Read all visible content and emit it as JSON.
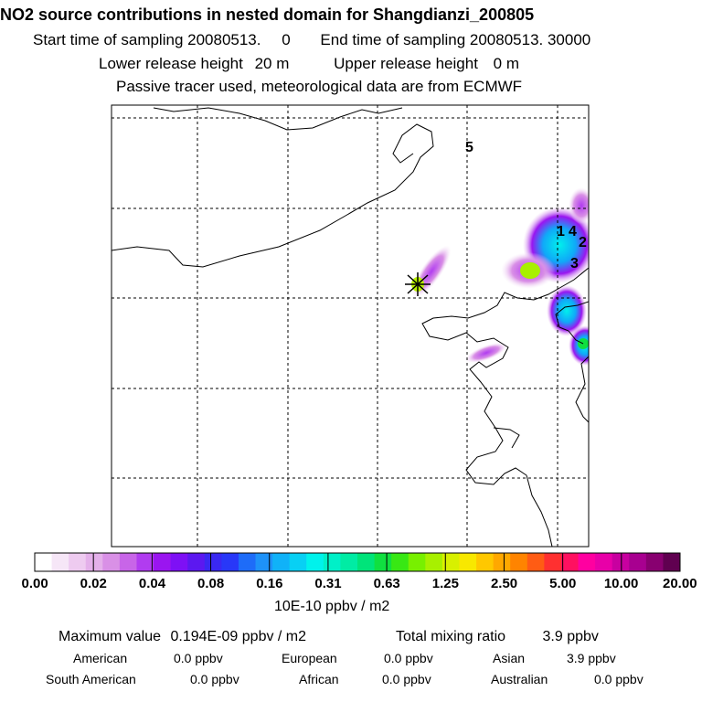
{
  "header": {
    "title": "NO2 source contributions in nested domain for Shangdianzi_200805",
    "start_label": "Start time of sampling 20080513.",
    "start_value": "0",
    "end_label": "End time of sampling 20080513. 30000",
    "lower_label": "Lower release height",
    "lower_value": "20 m",
    "upper_label": "Upper release height",
    "upper_value": "0 m",
    "tracer_note": "Passive tracer used, meteorological data are from ECMWF"
  },
  "map": {
    "labels": [
      "5",
      "1",
      "4",
      "2",
      "3"
    ],
    "receptor_marker": "receptor-marker"
  },
  "legend": {
    "colors": [
      "#ffffff",
      "#f6e6f7",
      "#eecbf0",
      "#e4b0ea",
      "#d990e6",
      "#c865e8",
      "#b13cf0",
      "#9a15f0",
      "#7e10f5",
      "#5c18f0",
      "#3a28f2",
      "#2838f8",
      "#1e6cf8",
      "#1e92f8",
      "#10b2f8",
      "#08d0f4",
      "#00f2ec",
      "#00f0c8",
      "#00eca4",
      "#00e47a",
      "#10e040",
      "#38e814",
      "#78f000",
      "#a8f000",
      "#d8f000",
      "#f8e800",
      "#ffc800",
      "#ffa800",
      "#ff8400",
      "#ff5c14",
      "#ff3030",
      "#ff1060",
      "#ff00a0",
      "#e800a8",
      "#c800a0",
      "#a80090",
      "#880070",
      "#600050"
    ],
    "ticks": [
      "0.00",
      "0.02",
      "0.04",
      "0.08",
      "0.16",
      "0.31",
      "0.63",
      "1.25",
      "2.50",
      "5.00",
      "10.00",
      "20.00"
    ],
    "units": "10E-10 ppbv / m2"
  },
  "stats": {
    "max_label": "Maximum value",
    "max_value": "0.194E-09 ppbv / m2",
    "total_label": "Total mixing ratio",
    "total_value": "3.9 ppbv",
    "sources": [
      {
        "name": "American",
        "value": "0.0 ppbv"
      },
      {
        "name": "European",
        "value": "0.0 ppbv"
      },
      {
        "name": "Asian",
        "value": "3.9 ppbv"
      },
      {
        "name": "South American",
        "value": "0.0 ppbv"
      },
      {
        "name": "African",
        "value": "0.0 ppbv"
      },
      {
        "name": "Australian",
        "value": "0.0 ppbv"
      }
    ]
  }
}
